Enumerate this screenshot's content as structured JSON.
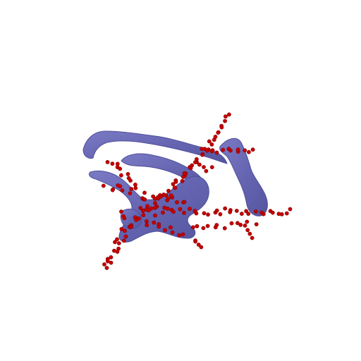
{
  "scene": {
    "background": "#ffffff",
    "surface_color": "#6b6bb8",
    "surface_edge_color": "#4f4f9a",
    "point_color": "#c40000",
    "point_edge_color": "#8a0000"
  }
}
